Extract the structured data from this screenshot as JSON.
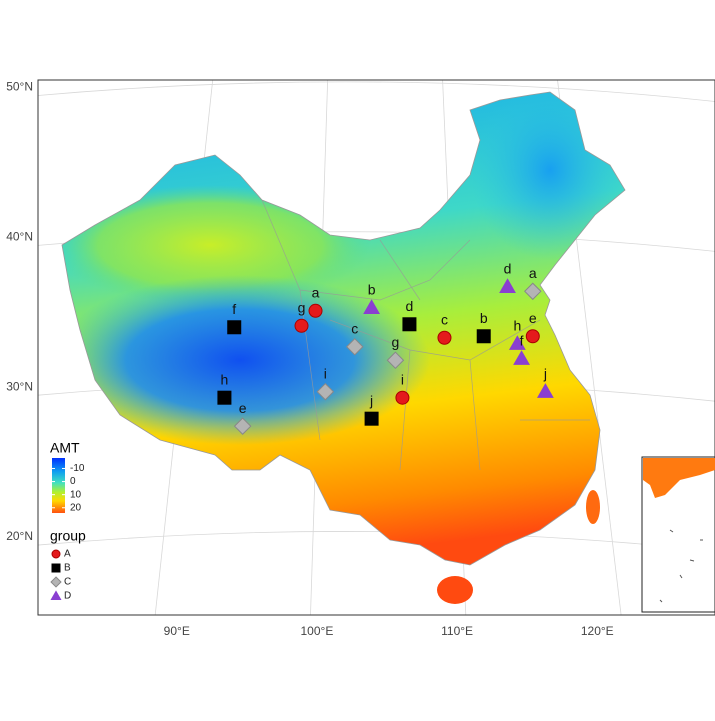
{
  "chart_data": {
    "type": "scatter",
    "xlim": [
      80.1,
      128.4
    ],
    "ylim": [
      14.8,
      50.5
    ],
    "xticks": [
      {
        "value": 90,
        "label": "90°E"
      },
      {
        "value": 100,
        "label": "100°E"
      },
      {
        "value": 110,
        "label": "110°E"
      },
      {
        "value": 120,
        "label": "120°E"
      }
    ],
    "yticks": [
      {
        "value": 20,
        "label": "20°N"
      },
      {
        "value": 30,
        "label": "30°N"
      },
      {
        "value": 40,
        "label": "40°N"
      },
      {
        "value": 50,
        "label": "50°N"
      }
    ],
    "grid": true,
    "colorbar": {
      "title": "AMT",
      "lim": [
        -18,
        24
      ],
      "ticks": [
        -10,
        0,
        10,
        20
      ]
    },
    "legend_title": "group",
    "series": [
      {
        "name": "A",
        "color": "#e41a1c",
        "shape": "circle",
        "labels": [
          "g",
          "a",
          "c",
          "e",
          "i"
        ],
        "x": [
          98.9,
          99.9,
          109.1,
          115.4,
          106.1
        ],
        "values": [
          34.1,
          35.1,
          33.3,
          33.4,
          29.3
        ]
      },
      {
        "name": "B",
        "color": "#000000",
        "shape": "square",
        "labels": [
          "f",
          "d",
          "b",
          "h",
          "j"
        ],
        "x": [
          94.1,
          106.6,
          111.9,
          93.4,
          103.9
        ],
        "values": [
          34.0,
          34.2,
          33.4,
          29.3,
          27.9
        ]
      },
      {
        "name": "C",
        "color": "#b4b4b4",
        "shape": "diamond",
        "labels": [
          "a",
          "c",
          "g",
          "i",
          "e"
        ],
        "x": [
          115.4,
          102.7,
          105.6,
          100.6,
          94.7
        ],
        "values": [
          36.4,
          32.7,
          31.8,
          29.7,
          27.4
        ]
      },
      {
        "name": "D",
        "color": "#8a3fd1",
        "shape": "triangle",
        "labels": [
          "b",
          "d",
          "h",
          "f",
          "j"
        ],
        "x": [
          103.9,
          113.6,
          114.3,
          114.6,
          116.3
        ],
        "values": [
          35.3,
          36.7,
          32.9,
          31.9,
          29.7
        ]
      }
    ]
  }
}
